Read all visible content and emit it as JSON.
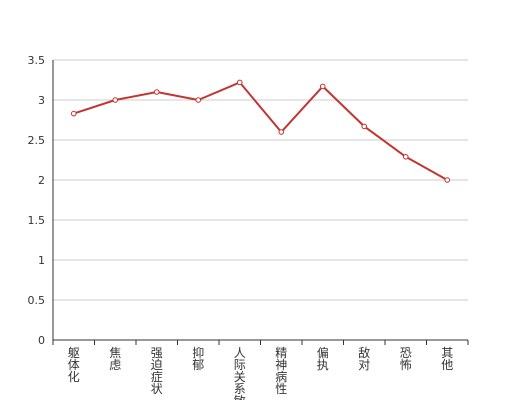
{
  "chart_data": {
    "type": "line",
    "title": "",
    "xlabel": "",
    "ylabel": "",
    "categories": [
      "躯体化",
      "焦虑",
      "强迫症状",
      "抑郁",
      "人际关系敏感",
      "精神病性",
      "偏执",
      "敌对",
      "恐怖",
      "其他"
    ],
    "series": [
      {
        "values": [
          2.83,
          3.0,
          3.1,
          3.0,
          3.22,
          2.6,
          3.17,
          2.67,
          2.29,
          2.0
        ]
      }
    ],
    "ylim": [
      0,
      3.5
    ],
    "yticks": [
      "0",
      "0.5",
      "1",
      "1.5",
      "2",
      "2.5",
      "3",
      "3.5"
    ],
    "grid": true,
    "legend": "none",
    "colors": {
      "line": "#c23531",
      "marker_fill": "#ffffff",
      "grid": "#cccccc",
      "axis": "#333333"
    }
  }
}
